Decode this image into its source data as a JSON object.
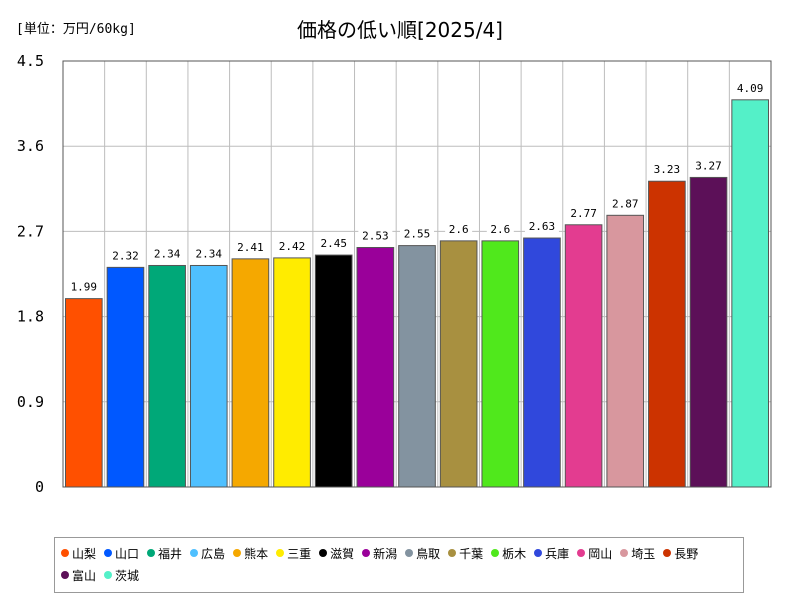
{
  "unit_label": "[単位：万円/60kg]",
  "chart_data": {
    "type": "bar",
    "title": "価格の低い順[2025/4]",
    "ylabel": "",
    "xlabel": "",
    "ylim": [
      0,
      4.5
    ],
    "yticks": [
      "0",
      "0.9",
      "1.8",
      "2.7",
      "3.6",
      "4.5"
    ],
    "grid": true,
    "legend_position": "bottom",
    "categories": [
      "山梨",
      "山口",
      "福井",
      "広島",
      "熊本",
      "三重",
      "滋賀",
      "新潟",
      "鳥取",
      "千葉",
      "栃木",
      "兵庫",
      "岡山",
      "埼玉",
      "長野",
      "富山",
      "茨城"
    ],
    "values": [
      1.99,
      2.32,
      2.34,
      2.34,
      2.41,
      2.42,
      2.45,
      2.53,
      2.55,
      2.6,
      2.6,
      2.63,
      2.77,
      2.87,
      3.23,
      3.27,
      4.09
    ],
    "value_labels": [
      "1.99",
      "2.32",
      "2.34",
      "2.34",
      "2.41",
      "2.42",
      "2.45",
      "2.53",
      "2.55",
      "2.6",
      "2.6",
      "2.63",
      "2.77",
      "2.87",
      "3.23",
      "3.27",
      "4.09"
    ],
    "colors": [
      "#ff5000",
      "#0058ff",
      "#00a878",
      "#4fc0ff",
      "#f5a800",
      "#ffec00",
      "#000000",
      "#9a009a",
      "#8393a0",
      "#a89040",
      "#50e81c",
      "#3048dc",
      "#e33c90",
      "#d8979e",
      "#cc3300",
      "#5c1058",
      "#54f0c8"
    ]
  }
}
